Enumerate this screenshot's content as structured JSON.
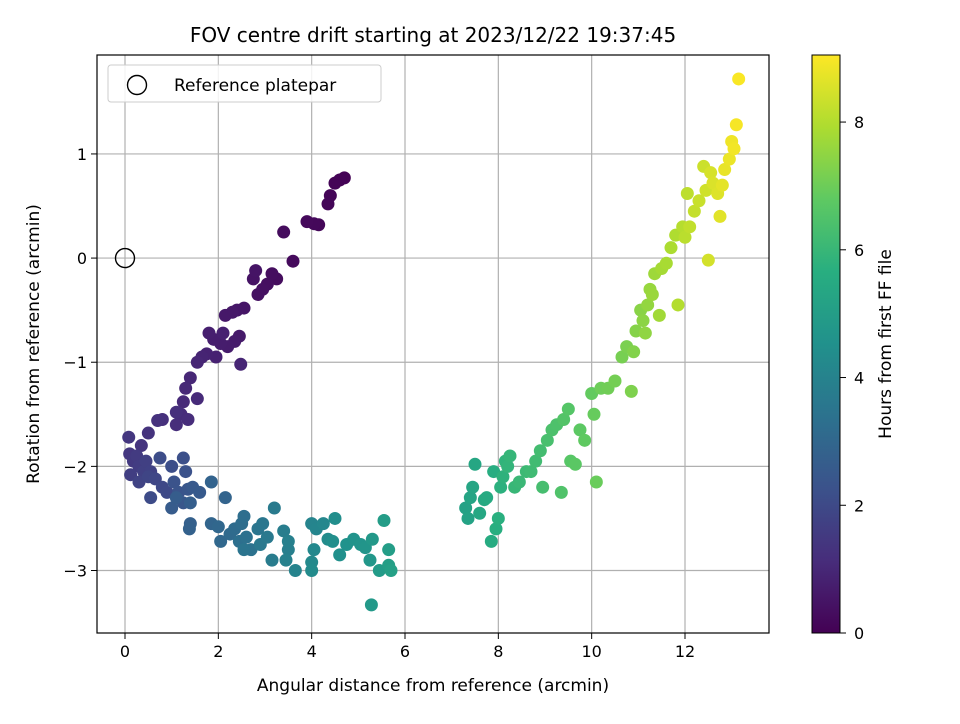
{
  "chart_data": {
    "type": "scatter",
    "title": "FOV centre drift starting at 2023/12/22 19:37:45",
    "xlabel": "Angular distance from reference (arcmin)",
    "ylabel": "Rotation from reference (arcmin)",
    "xlim": [
      -0.6,
      13.8
    ],
    "ylim": [
      -3.6,
      1.95
    ],
    "xticks": [
      0,
      2,
      4,
      6,
      8,
      10,
      12
    ],
    "yticks": [
      -3,
      -2,
      -1,
      0,
      1
    ],
    "grid": true,
    "colormap": "viridis",
    "colorbar": {
      "label": "Hours from first FF file",
      "range": [
        0,
        9.05
      ],
      "ticks": [
        0,
        2,
        4,
        6,
        8
      ]
    },
    "legend": {
      "placement": "upper-left",
      "entries": [
        {
          "label": "Reference platepar",
          "marker": "open-circle"
        }
      ]
    },
    "reference_point": {
      "x": 0,
      "y": 0
    },
    "series_points": [
      [
        4.7,
        0.77,
        0.02
      ],
      [
        4.6,
        0.75,
        0.05
      ],
      [
        4.5,
        0.72,
        0.07
      ],
      [
        4.4,
        0.6,
        0.1
      ],
      [
        4.35,
        0.52,
        0.12
      ],
      [
        4.15,
        0.32,
        0.15
      ],
      [
        4.05,
        0.33,
        0.18
      ],
      [
        3.9,
        0.35,
        0.2
      ],
      [
        3.6,
        -0.03,
        0.24
      ],
      [
        3.4,
        0.25,
        0.27
      ],
      [
        3.25,
        -0.2,
        0.3
      ],
      [
        3.15,
        -0.15,
        0.33
      ],
      [
        3.05,
        -0.25,
        0.36
      ],
      [
        2.95,
        -0.3,
        0.39
      ],
      [
        2.85,
        -0.35,
        0.42
      ],
      [
        2.75,
        -0.2,
        0.45
      ],
      [
        2.8,
        -0.12,
        0.48
      ],
      [
        2.55,
        -0.48,
        0.52
      ],
      [
        2.4,
        -0.5,
        0.55
      ],
      [
        2.3,
        -0.52,
        0.58
      ],
      [
        2.15,
        -0.55,
        0.6
      ],
      [
        2.45,
        -0.75,
        0.63
      ],
      [
        2.35,
        -0.8,
        0.66
      ],
      [
        2.2,
        -0.85,
        0.7
      ],
      [
        2.05,
        -0.82,
        0.72
      ],
      [
        1.9,
        -0.78,
        0.75
      ],
      [
        1.8,
        -0.72,
        0.78
      ],
      [
        2.1,
        -0.72,
        0.8
      ],
      [
        1.95,
        -0.95,
        0.83
      ],
      [
        1.75,
        -0.92,
        0.86
      ],
      [
        1.65,
        -0.95,
        0.9
      ],
      [
        2.48,
        -1.02,
        0.92
      ],
      [
        1.55,
        -1.0,
        0.95
      ],
      [
        1.4,
        -1.15,
        0.98
      ],
      [
        1.3,
        -1.25,
        1.02
      ],
      [
        1.25,
        -1.38,
        1.05
      ],
      [
        1.55,
        -1.35,
        1.08
      ],
      [
        1.2,
        -1.5,
        1.1
      ],
      [
        1.35,
        -1.55,
        1.13
      ],
      [
        1.1,
        -1.6,
        1.16
      ],
      [
        1.1,
        -1.48,
        1.2
      ],
      [
        0.8,
        -1.55,
        1.23
      ],
      [
        0.7,
        -1.56,
        1.27
      ],
      [
        0.5,
        -1.68,
        1.3
      ],
      [
        0.35,
        -1.8,
        1.35
      ],
      [
        0.08,
        -1.72,
        1.4
      ],
      [
        0.1,
        -1.88,
        1.45
      ],
      [
        0.18,
        -1.95,
        1.5
      ],
      [
        0.25,
        -1.9,
        1.55
      ],
      [
        0.3,
        -2.0,
        1.6
      ],
      [
        0.12,
        -2.08,
        1.65
      ],
      [
        0.4,
        -2.05,
        1.7
      ],
      [
        0.45,
        -1.95,
        1.72
      ],
      [
        0.55,
        -2.05,
        1.75
      ],
      [
        0.3,
        -2.15,
        1.8
      ],
      [
        0.5,
        -2.1,
        1.85
      ],
      [
        0.65,
        -2.12,
        1.9
      ],
      [
        0.8,
        -2.2,
        1.95
      ],
      [
        0.9,
        -2.25,
        2.0
      ],
      [
        0.55,
        -2.3,
        2.05
      ],
      [
        0.75,
        -1.92,
        2.1
      ],
      [
        1.0,
        -2.0,
        2.15
      ],
      [
        1.25,
        -1.92,
        2.2
      ],
      [
        1.3,
        -2.05,
        2.25
      ],
      [
        1.05,
        -2.15,
        2.3
      ],
      [
        1.15,
        -2.25,
        2.35
      ],
      [
        1.35,
        -2.22,
        2.4
      ],
      [
        1.25,
        -2.35,
        2.45
      ],
      [
        1.45,
        -2.2,
        2.5
      ],
      [
        1.6,
        -2.25,
        2.55
      ],
      [
        1.0,
        -2.4,
        2.6
      ],
      [
        1.1,
        -2.3,
        2.65
      ],
      [
        1.4,
        -2.35,
        2.7
      ],
      [
        1.4,
        -2.55,
        2.75
      ],
      [
        1.38,
        -2.6,
        2.8
      ],
      [
        1.85,
        -2.15,
        2.85
      ],
      [
        2.15,
        -2.3,
        2.9
      ],
      [
        1.85,
        -2.55,
        2.95
      ],
      [
        2.0,
        -2.58,
        3.0
      ],
      [
        2.05,
        -2.72,
        3.05
      ],
      [
        2.25,
        -2.65,
        3.1
      ],
      [
        2.35,
        -2.6,
        3.15
      ],
      [
        2.5,
        -2.55,
        3.2
      ],
      [
        2.55,
        -2.48,
        3.25
      ],
      [
        2.45,
        -2.72,
        3.3
      ],
      [
        2.6,
        -2.68,
        3.35
      ],
      [
        2.7,
        -2.8,
        3.4
      ],
      [
        2.55,
        -2.8,
        3.45
      ],
      [
        2.85,
        -2.6,
        3.5
      ],
      [
        2.95,
        -2.55,
        3.55
      ],
      [
        2.9,
        -2.75,
        3.6
      ],
      [
        3.05,
        -2.68,
        3.65
      ],
      [
        3.2,
        -2.4,
        3.7
      ],
      [
        3.15,
        -2.9,
        3.75
      ],
      [
        3.4,
        -2.62,
        3.8
      ],
      [
        3.5,
        -2.8,
        3.85
      ],
      [
        3.5,
        -2.72,
        3.9
      ],
      [
        3.45,
        -2.9,
        3.95
      ],
      [
        3.65,
        -3.0,
        4.0
      ],
      [
        4.0,
        -2.55,
        4.05
      ],
      [
        4.1,
        -2.6,
        4.1
      ],
      [
        4.25,
        -2.55,
        4.15
      ],
      [
        4.05,
        -2.8,
        4.2
      ],
      [
        4.0,
        -2.92,
        4.25
      ],
      [
        4.0,
        -3.0,
        4.3
      ],
      [
        4.35,
        -2.7,
        4.35
      ],
      [
        4.5,
        -2.5,
        4.4
      ],
      [
        4.45,
        -2.72,
        4.45
      ],
      [
        4.6,
        -2.85,
        4.5
      ],
      [
        4.75,
        -2.75,
        4.55
      ],
      [
        4.9,
        -2.7,
        4.6
      ],
      [
        5.05,
        -2.75,
        4.65
      ],
      [
        5.15,
        -2.78,
        4.7
      ],
      [
        5.25,
        -2.9,
        4.75
      ],
      [
        5.3,
        -2.7,
        4.8
      ],
      [
        5.28,
        -3.33,
        4.85
      ],
      [
        5.45,
        -3.0,
        4.9
      ],
      [
        5.55,
        -2.52,
        4.95
      ],
      [
        5.65,
        -2.8,
        5.0
      ],
      [
        5.65,
        -2.95,
        5.05
      ],
      [
        5.7,
        -3.0,
        5.1
      ],
      [
        7.3,
        -2.4,
        5.15
      ],
      [
        7.35,
        -2.5,
        5.2
      ],
      [
        7.4,
        -2.3,
        5.25
      ],
      [
        7.45,
        -2.2,
        5.3
      ],
      [
        7.5,
        -1.98,
        5.35
      ],
      [
        7.6,
        -2.45,
        5.4
      ],
      [
        7.7,
        -2.32,
        5.45
      ],
      [
        7.75,
        -2.3,
        5.5
      ],
      [
        7.85,
        -2.72,
        5.55
      ],
      [
        7.9,
        -2.05,
        5.6
      ],
      [
        7.95,
        -2.6,
        5.65
      ],
      [
        8.0,
        -2.5,
        5.7
      ],
      [
        8.05,
        -2.2,
        5.75
      ],
      [
        8.1,
        -2.1,
        5.8
      ],
      [
        8.15,
        -1.95,
        5.85
      ],
      [
        8.2,
        -2.0,
        5.9
      ],
      [
        8.25,
        -1.9,
        5.95
      ],
      [
        8.35,
        -2.2,
        6.0
      ],
      [
        8.45,
        -2.15,
        6.05
      ],
      [
        8.6,
        -2.05,
        6.1
      ],
      [
        8.7,
        -2.05,
        6.15
      ],
      [
        8.8,
        -1.95,
        6.2
      ],
      [
        8.9,
        -1.85,
        6.25
      ],
      [
        8.95,
        -2.2,
        6.3
      ],
      [
        9.05,
        -1.75,
        6.35
      ],
      [
        9.15,
        -1.65,
        6.4
      ],
      [
        9.25,
        -1.6,
        6.45
      ],
      [
        9.35,
        -2.25,
        6.5
      ],
      [
        9.4,
        -1.55,
        6.55
      ],
      [
        9.5,
        -1.45,
        6.6
      ],
      [
        9.55,
        -1.95,
        6.65
      ],
      [
        9.65,
        -1.98,
        6.7
      ],
      [
        9.75,
        -1.65,
        6.75
      ],
      [
        9.85,
        -1.75,
        6.8
      ],
      [
        10.0,
        -1.3,
        6.85
      ],
      [
        10.05,
        -1.5,
        6.9
      ],
      [
        10.1,
        -2.15,
        6.95
      ],
      [
        10.2,
        -1.25,
        7.0
      ],
      [
        10.35,
        -1.25,
        7.05
      ],
      [
        10.5,
        -1.18,
        7.1
      ],
      [
        10.65,
        -0.95,
        7.15
      ],
      [
        10.75,
        -0.85,
        7.2
      ],
      [
        10.85,
        -1.28,
        7.25
      ],
      [
        10.9,
        -0.9,
        7.3
      ],
      [
        10.95,
        -0.7,
        7.35
      ],
      [
        11.05,
        -0.5,
        7.4
      ],
      [
        11.1,
        -0.6,
        7.45
      ],
      [
        11.15,
        -0.72,
        7.5
      ],
      [
        11.2,
        -0.45,
        7.55
      ],
      [
        11.25,
        -0.3,
        7.6
      ],
      [
        11.3,
        -0.35,
        7.65
      ],
      [
        11.35,
        -0.15,
        7.7
      ],
      [
        11.45,
        -0.55,
        7.75
      ],
      [
        11.5,
        -0.1,
        7.8
      ],
      [
        11.6,
        -0.05,
        7.85
      ],
      [
        11.7,
        0.1,
        7.9
      ],
      [
        11.8,
        0.22,
        7.95
      ],
      [
        11.85,
        -0.45,
        8.0
      ],
      [
        11.95,
        0.3,
        8.05
      ],
      [
        12.0,
        0.2,
        8.1
      ],
      [
        12.05,
        0.62,
        8.15
      ],
      [
        12.1,
        0.3,
        8.2
      ],
      [
        12.2,
        0.45,
        8.25
      ],
      [
        12.3,
        0.55,
        8.3
      ],
      [
        12.4,
        0.88,
        8.35
      ],
      [
        12.45,
        0.65,
        8.4
      ],
      [
        12.5,
        -0.02,
        8.45
      ],
      [
        12.55,
        0.82,
        8.5
      ],
      [
        12.6,
        0.72,
        8.55
      ],
      [
        12.7,
        0.62,
        8.6
      ],
      [
        12.75,
        0.4,
        8.65
      ],
      [
        12.8,
        0.7,
        8.7
      ],
      [
        12.85,
        0.85,
        8.75
      ],
      [
        12.95,
        0.95,
        8.8
      ],
      [
        13.0,
        1.12,
        8.85
      ],
      [
        13.05,
        1.05,
        8.9
      ],
      [
        13.1,
        1.28,
        8.95
      ],
      [
        13.15,
        1.72,
        9.0
      ]
    ]
  }
}
